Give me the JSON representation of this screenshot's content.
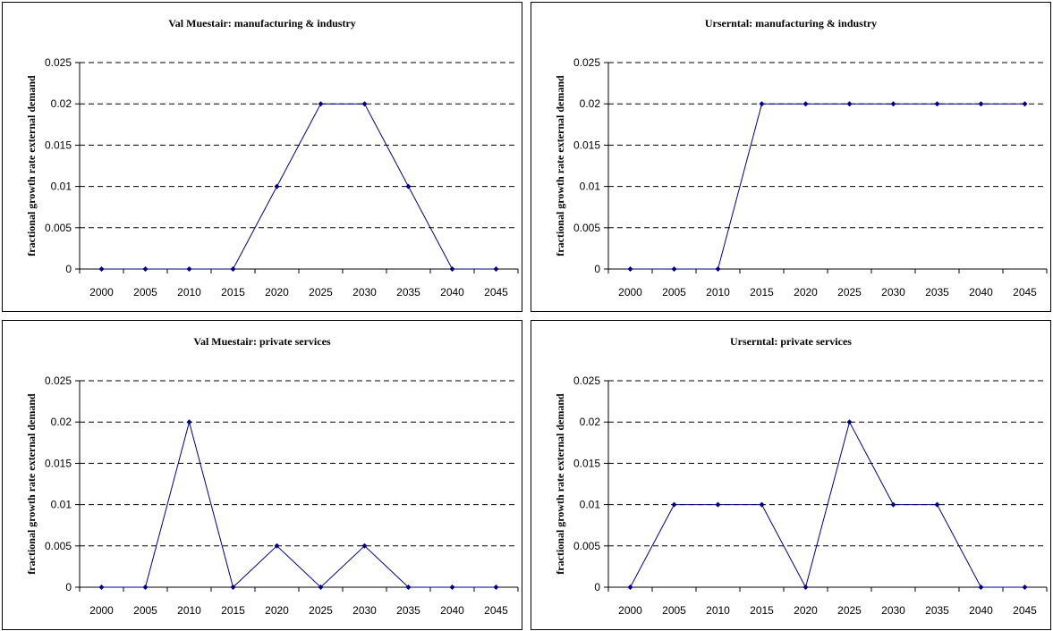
{
  "chart_data": [
    {
      "type": "line",
      "title": "Val Muestair: manufacturing & industry",
      "ylabel": "fractional growth rate external demand",
      "xlabel": "",
      "categories": [
        "2000",
        "2005",
        "2010",
        "2015",
        "2020",
        "2025",
        "2030",
        "2035",
        "2040",
        "2045"
      ],
      "values": [
        0,
        0,
        0,
        0,
        0.01,
        0.02,
        0.02,
        0.01,
        0,
        0
      ],
      "ylim": [
        0,
        0.025
      ],
      "yticks": [
        "0",
        "0.005",
        "0.01",
        "0.015",
        "0.02",
        "0.025"
      ],
      "grid": "dashed horizontal",
      "line_color": "#000080"
    },
    {
      "type": "line",
      "title": "Urserntal: manufacturing & industry",
      "ylabel": "fractional growth rate external demand",
      "xlabel": "",
      "categories": [
        "2000",
        "2005",
        "2010",
        "2015",
        "2020",
        "2025",
        "2030",
        "2035",
        "2040",
        "2045"
      ],
      "values": [
        0,
        0,
        0,
        0.02,
        0.02,
        0.02,
        0.02,
        0.02,
        0.02,
        0.02
      ],
      "ylim": [
        0,
        0.025
      ],
      "yticks": [
        "0",
        "0.005",
        "0.01",
        "0.015",
        "0.02",
        "0.025"
      ],
      "grid": "dashed horizontal",
      "line_color": "#000080"
    },
    {
      "type": "line",
      "title": "Val Muestair: private services",
      "ylabel": "fractional growth rate external demand",
      "xlabel": "",
      "categories": [
        "2000",
        "2005",
        "2010",
        "2015",
        "2020",
        "2025",
        "2030",
        "2035",
        "2040",
        "2045"
      ],
      "values": [
        0,
        0,
        0.02,
        0,
        0.005,
        0,
        0.005,
        0,
        0,
        0
      ],
      "ylim": [
        0,
        0.025
      ],
      "yticks": [
        "0",
        "0.005",
        "0.01",
        "0.015",
        "0.02",
        "0.025"
      ],
      "grid": "dashed horizontal",
      "line_color": "#000080"
    },
    {
      "type": "line",
      "title": "Urserntal: private services",
      "ylabel": "fractional growth rate external demand",
      "xlabel": "",
      "categories": [
        "2000",
        "2005",
        "2010",
        "2015",
        "2020",
        "2025",
        "2030",
        "2035",
        "2040",
        "2045"
      ],
      "values": [
        0,
        0.01,
        0.01,
        0.01,
        0,
        0.02,
        0.01,
        0.01,
        0,
        0
      ],
      "ylim": [
        0,
        0.025
      ],
      "yticks": [
        "0",
        "0.005",
        "0.01",
        "0.015",
        "0.02",
        "0.025"
      ],
      "grid": "dashed horizontal",
      "line_color": "#000080"
    }
  ]
}
